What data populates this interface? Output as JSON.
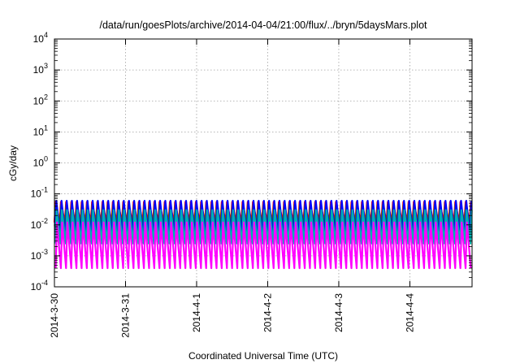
{
  "chart_data": {
    "type": "line",
    "title": "/data/run/goesPlots/archive/2014-04-04/21:00/flux/../bryn/5daysMars.plot",
    "xlabel": "Coordinated Universal Time (UTC)",
    "ylabel": "cGy/day",
    "y_scale": "log",
    "ylim": [
      0.0001,
      10000
    ],
    "y_ticks": [
      {
        "base": "10",
        "exp": "-4"
      },
      {
        "base": "10",
        "exp": "-3"
      },
      {
        "base": "10",
        "exp": "-2"
      },
      {
        "base": "10",
        "exp": "-1"
      },
      {
        "base": "10",
        "exp": "0"
      },
      {
        "base": "10",
        "exp": "1"
      },
      {
        "base": "10",
        "exp": "2"
      },
      {
        "base": "10",
        "exp": "3"
      },
      {
        "base": "10",
        "exp": "4"
      }
    ],
    "xlim": [
      "2014-03-30T00:00",
      "2014-04-04T21:00"
    ],
    "x_ticks": [
      "2014-3-30",
      "2014-3-31",
      "2014-4-1",
      "2014-4-2",
      "2014-4-3",
      "2014-4-4"
    ],
    "grid": true,
    "oscillation": {
      "cycles_per_day": 13.7,
      "days": 5.875
    },
    "series": [
      {
        "color": "#ff0000",
        "values": [
          0.012,
          0.055
        ]
      },
      {
        "color": "#00a000",
        "values": [
          0.009,
          0.045
        ]
      },
      {
        "color": "#0000ff",
        "values": [
          0.004,
          0.06
        ]
      },
      {
        "color": "#00b0b0",
        "values": [
          0.0025,
          0.03
        ]
      },
      {
        "color": "#ff00ff",
        "values": [
          0.0004,
          0.012
        ]
      }
    ]
  }
}
